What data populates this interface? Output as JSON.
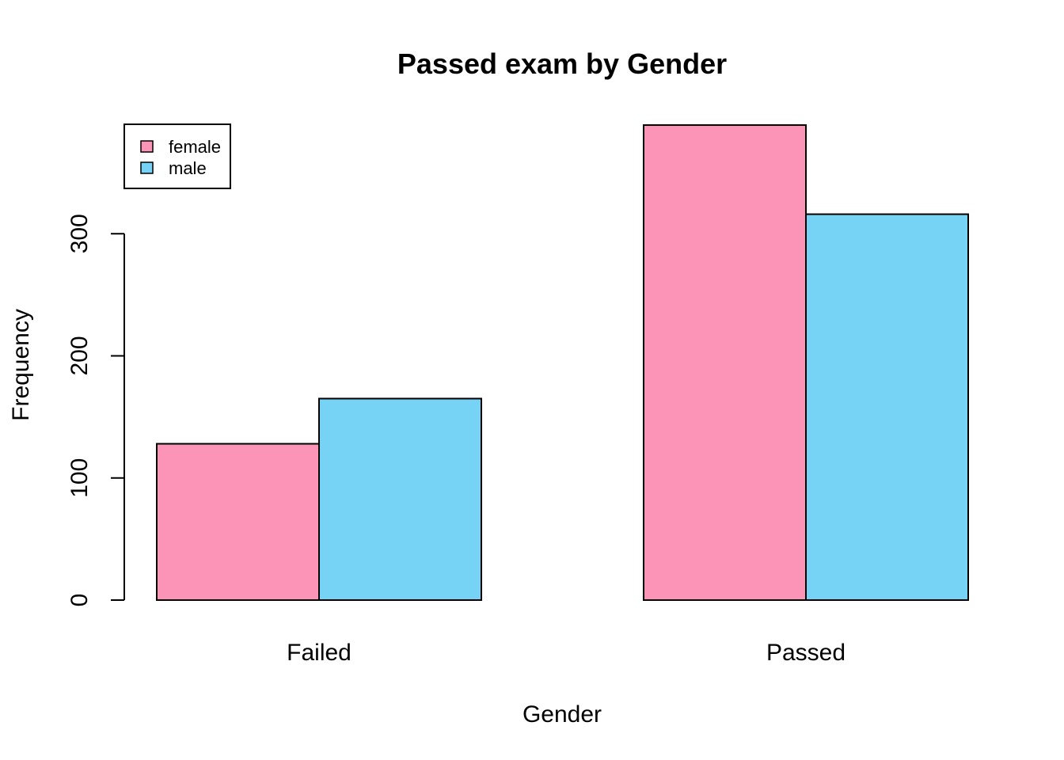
{
  "chart_data": {
    "type": "bar",
    "title": "Passed exam by Gender",
    "xlabel": "Gender",
    "ylabel": "Frequency",
    "categories": [
      "Failed",
      "Passed"
    ],
    "series": [
      {
        "name": "female",
        "values": [
          128,
          389
        ],
        "color": "#FC94B8"
      },
      {
        "name": "male",
        "values": [
          165,
          316
        ],
        "color": "#77D3F5"
      }
    ],
    "ylim": [
      0,
      390
    ],
    "yticks": [
      0,
      100,
      200,
      300
    ],
    "grid": false,
    "legend_position": "top-left"
  }
}
